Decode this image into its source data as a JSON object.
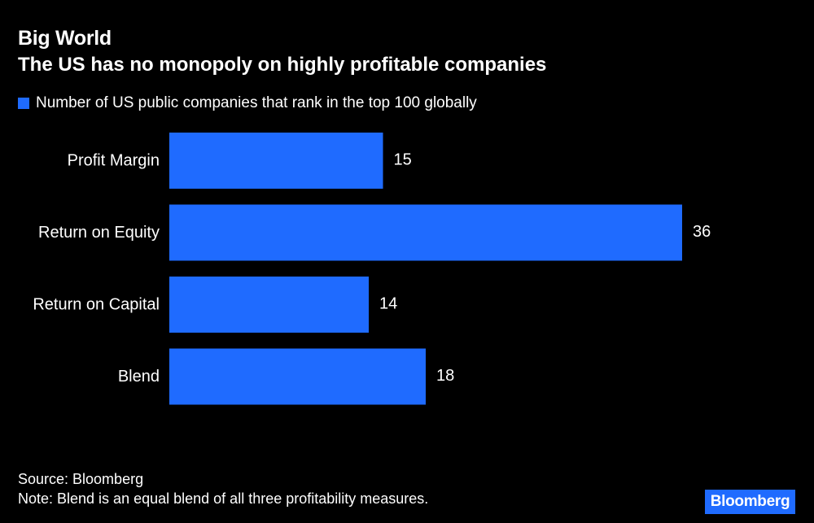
{
  "chart_data": {
    "type": "bar",
    "orientation": "horizontal",
    "title": "Big World",
    "subtitle": "The US has no monopoly on highly profitable companies",
    "legend": [
      {
        "label": "Number of US public companies that rank in the top 100 globally",
        "color": "#1f6bff"
      }
    ],
    "categories": [
      "Profit Margin",
      "Return on Equity",
      "Return on Capital",
      "Blend"
    ],
    "series": [
      {
        "name": "Number of US public companies that rank in the top 100 globally",
        "values": [
          15,
          36,
          14,
          18
        ]
      }
    ],
    "xlim": [
      0,
      36
    ],
    "grid": false,
    "bar_color": "#1f6bff"
  },
  "footer": {
    "source": "Source: Bloomberg",
    "note": "Note: Blend is an equal blend of all three profitability measures."
  },
  "brand": {
    "label": "Bloomberg",
    "color": "#1f6bff"
  }
}
